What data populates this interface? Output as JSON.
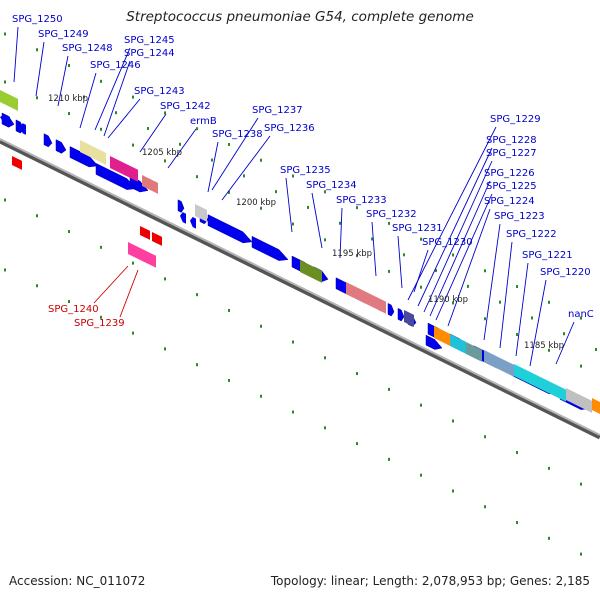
{
  "title": "Streptococcus pneumoniae G54, complete genome",
  "footer": {
    "accession": "Accession: NC_011072",
    "topology": "Topology: linear; Length: 2,078,953 bp; Genes: 2,185"
  },
  "ruler": [
    "1210 kbp",
    "1205 kbp",
    "1200 kbp",
    "1195 kbp",
    "1190 kbp",
    "1185 kbp"
  ],
  "gene_labels": [
    "SPG_1250",
    "SPG_1249",
    "SPG_1248",
    "SPG_1246",
    "SPG_1245",
    "SPG_1244",
    "SPG_1243",
    "SPG_1242",
    "ermB",
    "SPG_1238",
    "SPG_1237",
    "SPG_1236",
    "SPG_1235",
    "SPG_1234",
    "SPG_1233",
    "SPG_1232",
    "SPG_1231",
    "SPG_1230",
    "SPG_1229",
    "SPG_1228",
    "SPG_1227",
    "SPG_1226",
    "SPG_1225",
    "SPG_1224",
    "SPG_1223",
    "SPG_1222",
    "SPG_1221",
    "SPG_1220",
    "nanC"
  ],
  "highlight_labels": [
    "SPG_1240",
    "SPG_1239"
  ],
  "colors": {
    "label": "#0000cc",
    "highlight": "#cc0000",
    "strand_gene": "#0000ee",
    "tick": "#2a8a2a",
    "backbone": "#8a8a8a"
  }
}
